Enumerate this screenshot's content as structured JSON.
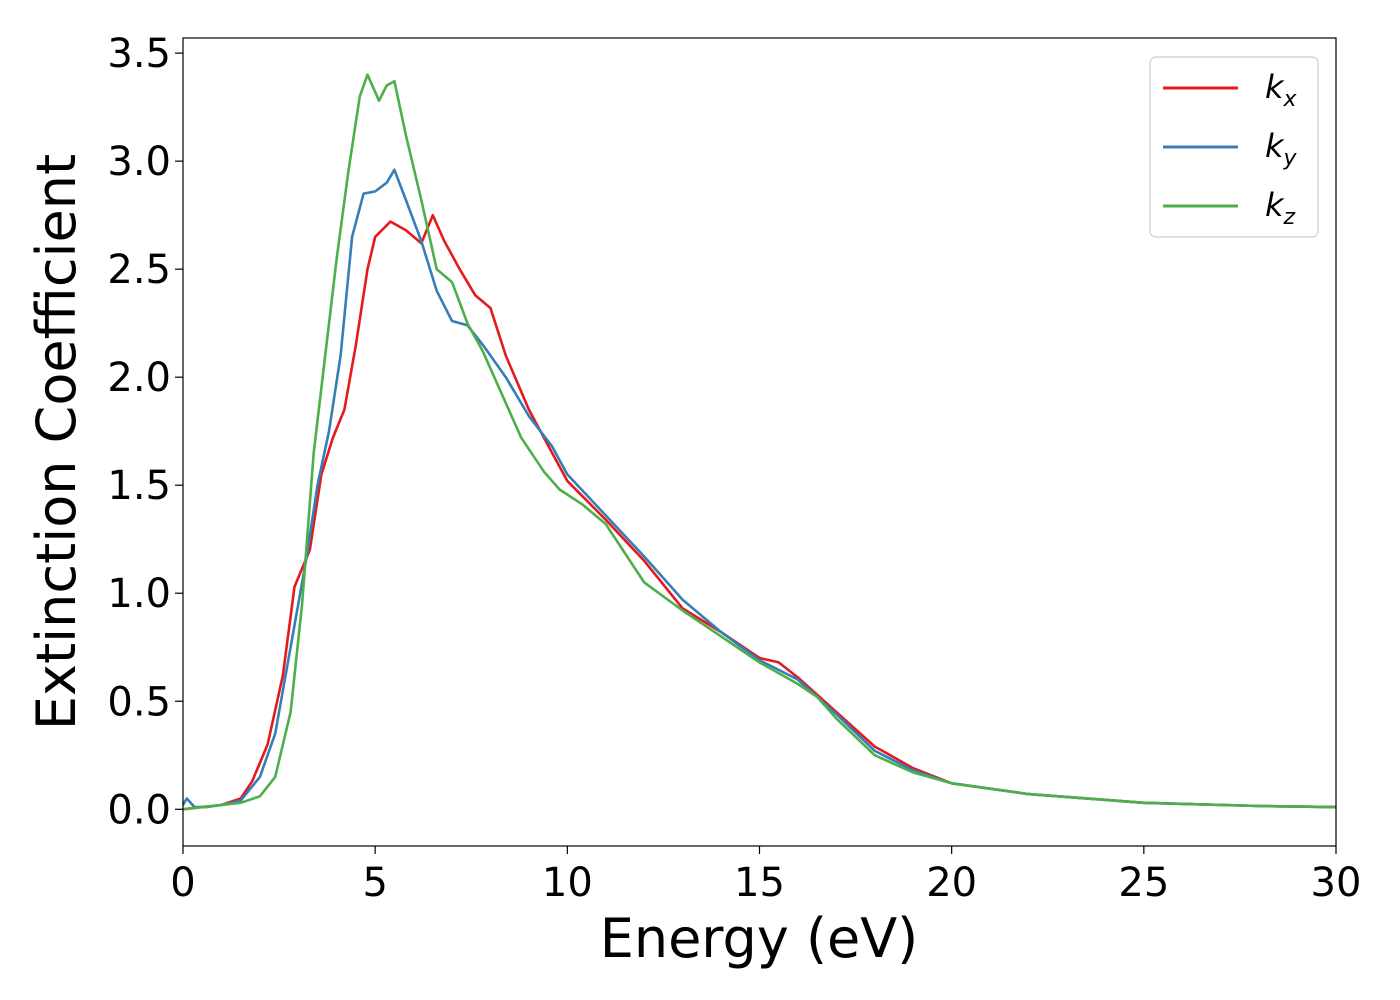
{
  "chart_data": {
    "type": "line",
    "xlabel": "Energy (eV)",
    "ylabel": "Extinction Coefficient",
    "xlim": [
      0,
      30
    ],
    "ylim": [
      -0.17,
      3.57
    ],
    "xticks": [
      "0",
      "5",
      "10",
      "15",
      "20",
      "25",
      "30"
    ],
    "yticks": [
      "0.0",
      "0.5",
      "1.0",
      "1.5",
      "2.0",
      "2.5",
      "3.0",
      "3.5"
    ],
    "grid": false,
    "legend_position": "top-right",
    "series": [
      {
        "name": "k",
        "subscript": "x",
        "color": "#e41a1c",
        "points": [
          [
            0,
            0
          ],
          [
            0.5,
            0.01
          ],
          [
            1,
            0.02
          ],
          [
            1.5,
            0.05
          ],
          [
            1.8,
            0.13
          ],
          [
            2.2,
            0.3
          ],
          [
            2.6,
            0.62
          ],
          [
            2.9,
            1.03
          ],
          [
            3.3,
            1.2
          ],
          [
            3.6,
            1.55
          ],
          [
            3.9,
            1.72
          ],
          [
            4.2,
            1.85
          ],
          [
            4.5,
            2.15
          ],
          [
            4.8,
            2.5
          ],
          [
            5.0,
            2.65
          ],
          [
            5.4,
            2.72
          ],
          [
            5.8,
            2.68
          ],
          [
            6.2,
            2.62
          ],
          [
            6.5,
            2.75
          ],
          [
            6.8,
            2.63
          ],
          [
            7.2,
            2.5
          ],
          [
            7.6,
            2.38
          ],
          [
            8.0,
            2.32
          ],
          [
            8.4,
            2.1
          ],
          [
            9.0,
            1.85
          ],
          [
            9.6,
            1.65
          ],
          [
            10.0,
            1.52
          ],
          [
            11.0,
            1.34
          ],
          [
            12.0,
            1.15
          ],
          [
            13.0,
            0.93
          ],
          [
            14.0,
            0.82
          ],
          [
            15.0,
            0.7
          ],
          [
            15.5,
            0.68
          ],
          [
            16.0,
            0.61
          ],
          [
            17.0,
            0.45
          ],
          [
            18.0,
            0.29
          ],
          [
            18.5,
            0.24
          ],
          [
            19.0,
            0.19
          ],
          [
            20.0,
            0.12
          ],
          [
            22.0,
            0.07
          ],
          [
            25.0,
            0.03
          ],
          [
            28.0,
            0.015
          ],
          [
            30.0,
            0.01
          ]
        ]
      },
      {
        "name": "k",
        "subscript": "y",
        "color": "#377eb8",
        "points": [
          [
            0,
            0.02
          ],
          [
            0.1,
            0.05
          ],
          [
            0.3,
            0.01
          ],
          [
            0.6,
            0.01
          ],
          [
            1.0,
            0.02
          ],
          [
            1.5,
            0.04
          ],
          [
            2.0,
            0.15
          ],
          [
            2.4,
            0.35
          ],
          [
            2.8,
            0.75
          ],
          [
            3.2,
            1.15
          ],
          [
            3.5,
            1.5
          ],
          [
            3.8,
            1.75
          ],
          [
            4.1,
            2.1
          ],
          [
            4.4,
            2.65
          ],
          [
            4.7,
            2.85
          ],
          [
            5.0,
            2.86
          ],
          [
            5.3,
            2.9
          ],
          [
            5.5,
            2.96
          ],
          [
            5.8,
            2.82
          ],
          [
            6.2,
            2.63
          ],
          [
            6.6,
            2.4
          ],
          [
            7.0,
            2.26
          ],
          [
            7.4,
            2.24
          ],
          [
            7.8,
            2.15
          ],
          [
            8.4,
            2.0
          ],
          [
            9.0,
            1.82
          ],
          [
            9.6,
            1.68
          ],
          [
            10.0,
            1.55
          ],
          [
            11.0,
            1.36
          ],
          [
            12.0,
            1.17
          ],
          [
            13.0,
            0.97
          ],
          [
            14.0,
            0.82
          ],
          [
            15.0,
            0.69
          ],
          [
            16.0,
            0.6
          ],
          [
            16.5,
            0.52
          ],
          [
            17.0,
            0.44
          ],
          [
            18.0,
            0.27
          ],
          [
            19.0,
            0.18
          ],
          [
            20.0,
            0.12
          ],
          [
            22.0,
            0.07
          ],
          [
            25.0,
            0.03
          ],
          [
            28.0,
            0.015
          ],
          [
            30.0,
            0.01
          ]
        ]
      },
      {
        "name": "k",
        "subscript": "z",
        "color": "#4daf4a",
        "points": [
          [
            0,
            0
          ],
          [
            0.5,
            0.01
          ],
          [
            1.0,
            0.02
          ],
          [
            1.5,
            0.03
          ],
          [
            2.0,
            0.06
          ],
          [
            2.4,
            0.15
          ],
          [
            2.8,
            0.45
          ],
          [
            3.1,
            0.95
          ],
          [
            3.4,
            1.65
          ],
          [
            3.7,
            2.1
          ],
          [
            4.0,
            2.55
          ],
          [
            4.3,
            2.95
          ],
          [
            4.6,
            3.3
          ],
          [
            4.8,
            3.4
          ],
          [
            5.1,
            3.28
          ],
          [
            5.3,
            3.35
          ],
          [
            5.5,
            3.37
          ],
          [
            5.8,
            3.12
          ],
          [
            6.2,
            2.82
          ],
          [
            6.6,
            2.5
          ],
          [
            7.0,
            2.44
          ],
          [
            7.4,
            2.25
          ],
          [
            7.8,
            2.12
          ],
          [
            8.3,
            1.92
          ],
          [
            8.8,
            1.72
          ],
          [
            9.4,
            1.56
          ],
          [
            9.8,
            1.48
          ],
          [
            10.4,
            1.41
          ],
          [
            11.0,
            1.32
          ],
          [
            12.0,
            1.05
          ],
          [
            13.0,
            0.92
          ],
          [
            14.0,
            0.8
          ],
          [
            15.0,
            0.68
          ],
          [
            16.0,
            0.58
          ],
          [
            16.5,
            0.52
          ],
          [
            17.0,
            0.42
          ],
          [
            18.0,
            0.25
          ],
          [
            19.0,
            0.17
          ],
          [
            20.0,
            0.12
          ],
          [
            22.0,
            0.07
          ],
          [
            25.0,
            0.03
          ],
          [
            28.0,
            0.015
          ],
          [
            30.0,
            0.01
          ]
        ]
      }
    ]
  }
}
